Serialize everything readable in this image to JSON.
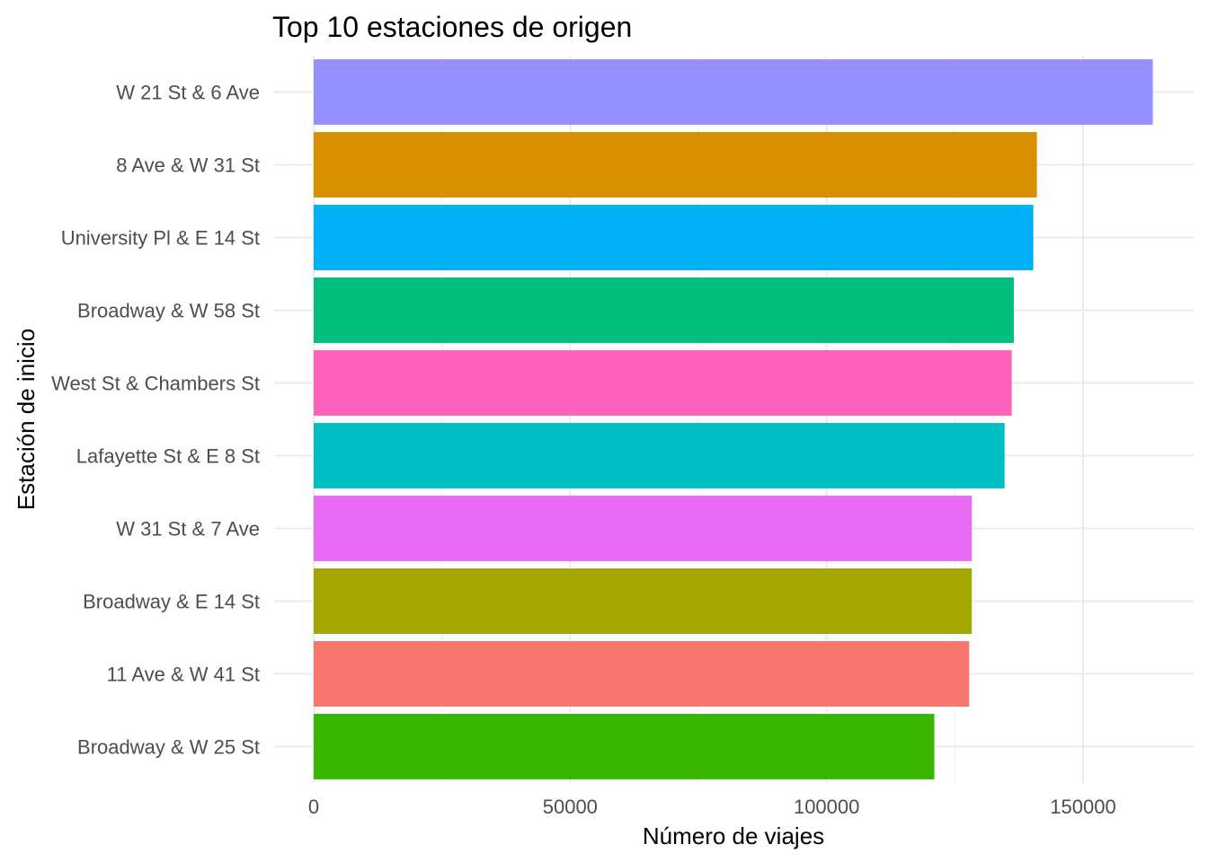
{
  "chart_data": {
    "type": "bar",
    "orientation": "horizontal",
    "title": "Top 10 estaciones de origen",
    "xlabel": "Número de viajes",
    "ylabel": "Estación de inicio",
    "xlim": [
      0,
      172000
    ],
    "x_ticks": [
      0,
      50000,
      100000,
      150000
    ],
    "x_tick_labels": [
      "0",
      "50000",
      "100000",
      "150000"
    ],
    "grid": true,
    "legend": "none",
    "categories": [
      "W 21 St & 6 Ave",
      "8 Ave & W 31 St",
      "University Pl & E 14 St",
      "Broadway & W 58 St",
      "West St & Chambers St",
      "Lafayette St & E 8 St",
      "W 31 St & 7 Ave",
      "Broadway & E 14 St",
      "11 Ave & W 41 St",
      "Broadway & W 25 St"
    ],
    "values": [
      163600,
      141000,
      140300,
      136500,
      136100,
      134700,
      128300,
      128300,
      127800,
      121000
    ],
    "colors": [
      "#9590FF",
      "#D89000",
      "#00B0F6",
      "#00BF7D",
      "#FF62BC",
      "#00BFC4",
      "#E76BF3",
      "#A3A500",
      "#F8766D",
      "#39B600"
    ]
  }
}
